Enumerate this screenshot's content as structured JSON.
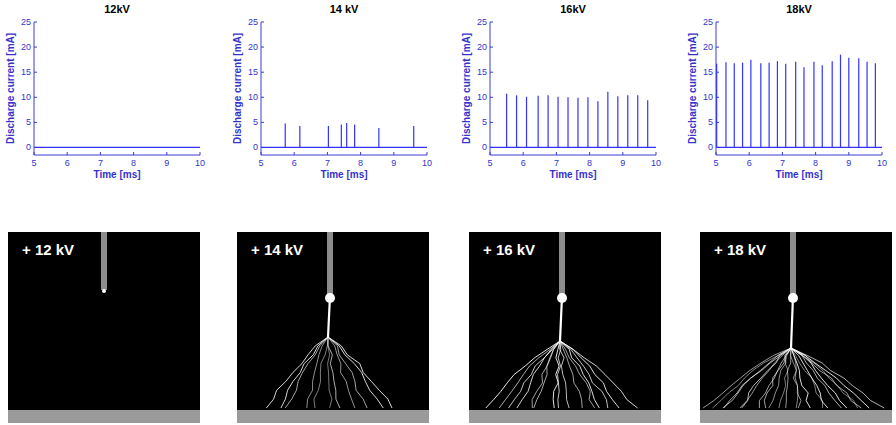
{
  "chart_data": [
    {
      "type": "stem",
      "title": "12kV",
      "x_label": "Time [ms]",
      "y_label": "Discharge current [mA]",
      "xlim": [
        5,
        10
      ],
      "ylim": [
        -1.5,
        25
      ],
      "xticks": [
        5,
        6,
        7,
        8,
        9,
        10
      ],
      "yticks": [
        0,
        5,
        10,
        15,
        20,
        25
      ],
      "color": "#3333ff",
      "baseline": 0,
      "x": [],
      "values": []
    },
    {
      "type": "stem",
      "title": "14 kV",
      "x_label": "Time [ms]",
      "y_label": "Discharge current [mA]",
      "xlim": [
        5,
        10
      ],
      "ylim": [
        -1.5,
        25
      ],
      "xticks": [
        5,
        6,
        7,
        8,
        9,
        10
      ],
      "yticks": [
        0,
        5,
        10,
        15,
        20,
        25
      ],
      "color": "#3333ff",
      "baseline": 0,
      "x": [
        5.73,
        6.17,
        7.03,
        7.42,
        7.58,
        7.82,
        8.55,
        9.6
      ],
      "values": [
        4.8,
        4.3,
        4.3,
        4.6,
        4.9,
        4.6,
        3.9,
        4.3
      ]
    },
    {
      "type": "stem",
      "title": "16kV",
      "x_label": "Time [ms]",
      "y_label": "Discharge current [mA]",
      "xlim": [
        5,
        10
      ],
      "ylim": [
        -1.5,
        25
      ],
      "xticks": [
        5,
        6,
        7,
        8,
        9,
        10
      ],
      "yticks": [
        0,
        5,
        10,
        15,
        20,
        25
      ],
      "color": "#3333ff",
      "baseline": 0,
      "x": [
        5.5,
        5.8,
        6.1,
        6.45,
        6.75,
        7.05,
        7.35,
        7.65,
        7.95,
        8.25,
        8.55,
        8.85,
        9.15,
        9.45,
        9.75
      ],
      "values": [
        10.7,
        10.4,
        10.1,
        10.3,
        10.4,
        10.1,
        10.0,
        9.9,
        10.0,
        9.2,
        11.1,
        10.2,
        10.4,
        10.4,
        9.4
      ]
    },
    {
      "type": "stem",
      "title": "18kV",
      "x_label": "Time [ms]",
      "y_label": "Discharge current [mA]",
      "xlim": [
        5,
        10
      ],
      "ylim": [
        -1.5,
        25
      ],
      "xticks": [
        5,
        6,
        7,
        8,
        9,
        10
      ],
      "yticks": [
        0,
        5,
        10,
        15,
        20,
        25
      ],
      "color": "#3333ff",
      "baseline": 0,
      "x": [
        5.02,
        5.3,
        5.55,
        5.8,
        6.05,
        6.35,
        6.6,
        6.85,
        7.1,
        7.4,
        7.65,
        7.95,
        8.2,
        8.5,
        8.75,
        9.0,
        9.3,
        9.55,
        9.8
      ],
      "values": [
        16.7,
        17.0,
        16.8,
        16.9,
        17.5,
        16.8,
        16.9,
        17.2,
        16.7,
        17.1,
        16.0,
        17.1,
        16.4,
        17.2,
        18.5,
        17.9,
        17.8,
        17.1,
        16.8
      ]
    }
  ],
  "images": [
    {
      "label": "+ 12 kV"
    },
    {
      "label": "+ 14 kV"
    },
    {
      "label": "+ 16 kV"
    },
    {
      "label": "+ 18 kV"
    }
  ]
}
